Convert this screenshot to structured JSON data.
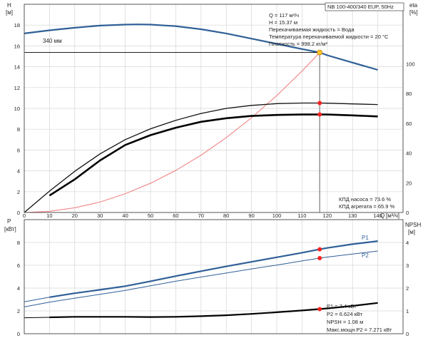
{
  "chart_data": [
    {
      "type": "line",
      "title": "NB 100-400/340 EUP, 50Hz",
      "xlabel": "Q",
      "xunit": "[м³/ч]",
      "ylabel_left": "H",
      "yunit_left": "[м]",
      "ylabel_right": "eta",
      "yunit_right": "[%]",
      "xlim": [
        0,
        150
      ],
      "ylim_left": [
        0,
        20
      ],
      "ylim_right": [
        0,
        140
      ],
      "x_ticks": [
        "0",
        "10",
        "20",
        "30",
        "40",
        "50",
        "60",
        "70",
        "80",
        "90",
        "100",
        "110",
        "120",
        "130",
        "140"
      ],
      "y_ticks_left": [
        "0",
        "2",
        "4",
        "6",
        "8",
        "10",
        "12",
        "14",
        "16",
        "18"
      ],
      "y_ticks_right": [
        "0",
        "20",
        "40",
        "60",
        "80",
        "100"
      ],
      "grid": true,
      "curve_label": "340 мм",
      "info_lines": [
        "Q = 117 м³/ч",
        "H = 15.37 м",
        "Перекачиваемая жидкость = Вода",
        "Температура перекачиваемой жидкости = 20 °C",
        "Плотность = 998.2 кг/м³"
      ],
      "efficiency_labels": [
        "КПД насоса = 73.6 %",
        "КПД агрегата = 65.9 %"
      ],
      "operating_point": {
        "q": 117,
        "h": 15.37,
        "eta_pump": 73.6,
        "eta_unit": 65.9
      },
      "series": [
        {
          "key": "head",
          "axis": "left",
          "color": "#2f5f97",
          "width": 2.2,
          "x": [
            0,
            10,
            20,
            30,
            40,
            45,
            50,
            60,
            70,
            80,
            90,
            100,
            110,
            117,
            120,
            130,
            140
          ],
          "y": [
            17.2,
            17.5,
            17.75,
            17.95,
            18.05,
            18.07,
            18.05,
            17.9,
            17.6,
            17.2,
            16.7,
            16.2,
            15.7,
            15.37,
            15.1,
            14.4,
            13.7
          ]
        },
        {
          "key": "system",
          "axis": "left",
          "color": "#f07878",
          "width": 1,
          "x": [
            0,
            10,
            20,
            30,
            40,
            50,
            60,
            70,
            80,
            90,
            100,
            110,
            117
          ],
          "y": [
            0,
            0.11,
            0.45,
            1.01,
            1.8,
            2.81,
            4.04,
            5.5,
            7.19,
            9.1,
            11.23,
            13.59,
            15.37
          ]
        },
        {
          "key": "eta_pump",
          "axis": "right",
          "color": "#111111",
          "width": 1.3,
          "x": [
            0,
            10,
            20,
            30,
            40,
            50,
            60,
            70,
            80,
            90,
            100,
            110,
            117,
            120,
            130,
            140
          ],
          "y": [
            0,
            14.4,
            27.7,
            39.4,
            49.0,
            56.3,
            62.0,
            66.6,
            70.0,
            72.0,
            73.2,
            73.6,
            73.6,
            73.5,
            73.0,
            72.6
          ]
        },
        {
          "key": "eta_unit",
          "axis": "right",
          "color": "#000000",
          "width": 2.6,
          "x": [
            10,
            20,
            30,
            40,
            50,
            60,
            70,
            80,
            90,
            100,
            110,
            117,
            120,
            130,
            140
          ],
          "y": [
            11.4,
            22.3,
            35.0,
            45.4,
            52.0,
            57.0,
            61.0,
            63.4,
            64.9,
            65.6,
            65.9,
            65.9,
            65.9,
            65.3,
            64.6
          ]
        }
      ],
      "markers": [
        {
          "axis": "left",
          "x": 117,
          "y": 15.37,
          "color": "#ffc32b",
          "stroke": "#c08000",
          "r": 3.5
        },
        {
          "axis": "right",
          "x": 117,
          "y": 73.6,
          "color": "#ff2020",
          "r": 3
        },
        {
          "axis": "right",
          "x": 117,
          "y": 65.9,
          "color": "#ff2020",
          "r": 3
        }
      ]
    },
    {
      "type": "line",
      "ylabel_left": "P",
      "yunit_left": "[кВт]",
      "ylabel_right": "NPSH",
      "yunit_right": "[м]",
      "xlim": [
        0,
        150
      ],
      "ylim_left": [
        0,
        10
      ],
      "ylim_right": [
        0,
        5
      ],
      "y_ticks_left": [
        "0",
        "2",
        "4",
        "6",
        "8"
      ],
      "y_ticks_right": [
        "0",
        "1",
        "2",
        "3",
        "4"
      ],
      "grid": true,
      "series_labels": [
        "P1",
        "P2"
      ],
      "info_lines": [
        "P1 = 7.4 кВт",
        "P2 = 6.624 кВт",
        "NPSH = 1.08 м",
        "Макс.мощн.P2 = 7.271 кВт"
      ],
      "series": [
        {
          "key": "P1",
          "name": "P1",
          "axis": "left",
          "color": "#2f5f97",
          "width": 2.2,
          "x": [
            10,
            20,
            30,
            40,
            50,
            60,
            70,
            80,
            90,
            100,
            110,
            117,
            120,
            130,
            140
          ],
          "y": [
            3.2,
            3.55,
            3.85,
            4.17,
            4.6,
            5.05,
            5.48,
            5.9,
            6.3,
            6.7,
            7.1,
            7.4,
            7.52,
            7.85,
            8.12
          ]
        },
        {
          "key": "P1_ext",
          "axis": "left",
          "color": "#2f5f97",
          "width": 1,
          "x": [
            0,
            10
          ],
          "y": [
            2.8,
            3.2
          ]
        },
        {
          "key": "P2",
          "name": "P2",
          "axis": "left",
          "color": "#2f5f97",
          "width": 1,
          "x": [
            0,
            10,
            20,
            30,
            40,
            50,
            60,
            70,
            80,
            90,
            100,
            110,
            117,
            120,
            130,
            140
          ],
          "y": [
            2.35,
            2.76,
            3.12,
            3.45,
            3.8,
            4.2,
            4.6,
            4.97,
            5.32,
            5.68,
            6.02,
            6.38,
            6.624,
            6.72,
            6.98,
            7.25
          ]
        },
        {
          "key": "NPSH",
          "axis": "right",
          "color": "#000000",
          "width": 2.2,
          "x": [
            10,
            20,
            30,
            40,
            50,
            60,
            70,
            80,
            90,
            100,
            110,
            117,
            120,
            130,
            140
          ],
          "y": [
            0.72,
            0.74,
            0.74,
            0.74,
            0.73,
            0.74,
            0.77,
            0.81,
            0.87,
            0.94,
            1.02,
            1.08,
            1.11,
            1.22,
            1.35
          ]
        },
        {
          "key": "NPSH_ext",
          "axis": "right",
          "color": "#000000",
          "width": 1,
          "x": [
            0,
            10
          ],
          "y": [
            0.7,
            0.72
          ]
        }
      ],
      "markers": [
        {
          "axis": "left",
          "x": 117,
          "y": 7.4,
          "color": "#ff2020",
          "r": 3
        },
        {
          "axis": "left",
          "x": 117,
          "y": 6.624,
          "color": "#ff2020",
          "r": 3
        },
        {
          "axis": "right",
          "x": 117,
          "y": 1.08,
          "color": "#ff2020",
          "r": 3
        }
      ]
    }
  ]
}
